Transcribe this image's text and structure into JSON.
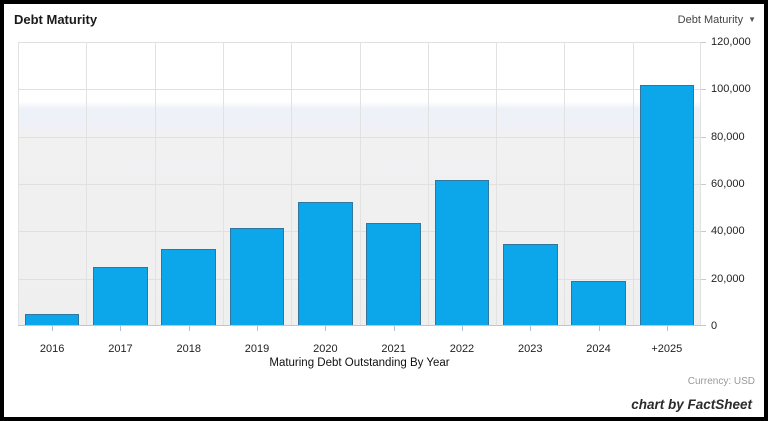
{
  "header": {
    "title": "Debt Maturity",
    "dropdown": {
      "label": "Debt Maturity",
      "icon": "chevron-down-icon",
      "icon_glyph": "▼"
    }
  },
  "chart_data": {
    "type": "bar",
    "title": "Debt Maturity",
    "categories": [
      "2016",
      "2017",
      "2018",
      "2019",
      "2020",
      "2021",
      "2022",
      "2023",
      "2024",
      "+2025"
    ],
    "values": [
      5200,
      25000,
      32500,
      41500,
      52500,
      43500,
      61500,
      34500,
      19000,
      102000
    ],
    "xlabel": "Maturing Debt Outstanding By Year",
    "ylabel": "",
    "ylim": [
      0,
      120000
    ],
    "ytick_interval": 20000,
    "yticks": [
      "0",
      "20,000",
      "40,000",
      "60,000",
      "80,000",
      "100,000",
      "120,000"
    ],
    "y_axis_side": "right",
    "grid": true,
    "legend": "none",
    "bar_color": "#0ca6ea",
    "bar_border_color": "#32769e"
  },
  "footer": {
    "currency_label": "Currency: USD",
    "watermark": "chart by FactSheet"
  }
}
